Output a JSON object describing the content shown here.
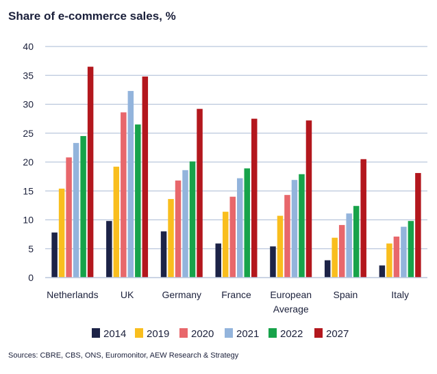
{
  "chart_data": {
    "type": "bar",
    "title": "Share of e-commerce sales, %",
    "categories": [
      "Netherlands",
      "UK",
      "Germany",
      "France",
      "European Average",
      "Spain",
      "Italy"
    ],
    "category_lines": [
      [
        "Netherlands"
      ],
      [
        "UK"
      ],
      [
        "Germany"
      ],
      [
        "France"
      ],
      [
        "European",
        "Average"
      ],
      [
        "Spain"
      ],
      [
        "Italy"
      ]
    ],
    "ylim": [
      0,
      40
    ],
    "yticks": [
      0,
      5,
      10,
      15,
      20,
      25,
      30,
      35,
      40
    ],
    "grid": true,
    "legend_position": "bottom",
    "series": [
      {
        "name": "2014",
        "color": "#1c2347",
        "values": [
          7.8,
          9.8,
          8.0,
          5.9,
          5.4,
          3.0,
          2.1
        ]
      },
      {
        "name": "2019",
        "color": "#f9be1e",
        "values": [
          15.4,
          19.2,
          13.6,
          11.4,
          10.7,
          6.9,
          5.9
        ]
      },
      {
        "name": "2020",
        "color": "#e8676b",
        "values": [
          20.8,
          28.6,
          16.8,
          14.0,
          14.3,
          9.1,
          7.1
        ]
      },
      {
        "name": "2021",
        "color": "#93b4dc",
        "values": [
          23.3,
          32.3,
          18.6,
          17.2,
          16.9,
          11.1,
          8.8
        ]
      },
      {
        "name": "2022",
        "color": "#17a34a",
        "values": [
          24.5,
          26.5,
          20.1,
          18.9,
          17.9,
          12.4,
          9.8
        ]
      },
      {
        "name": "2027",
        "color": "#b3171d",
        "values": [
          36.5,
          34.8,
          29.2,
          27.5,
          27.2,
          20.5,
          18.1
        ]
      }
    ]
  },
  "source": "Sources: CBRE, CBS, ONS, Euromonitor, AEW Research & Strategy"
}
